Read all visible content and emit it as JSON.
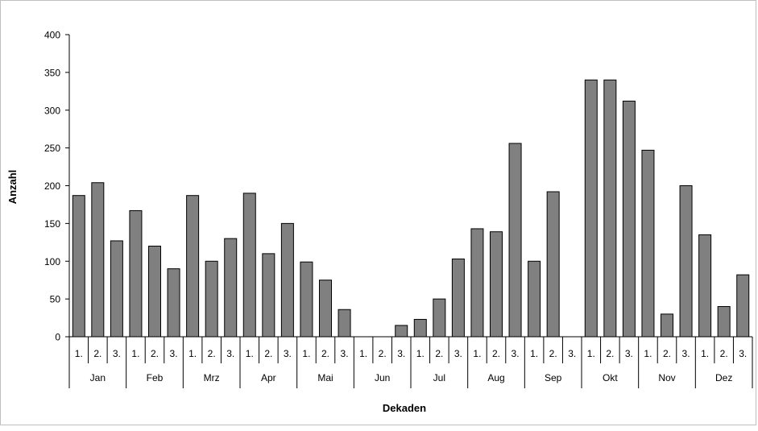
{
  "chart_data": {
    "type": "bar",
    "title": "",
    "xlabel": "Dekaden",
    "ylabel": "Anzahl",
    "ylim": [
      0,
      400
    ],
    "yticks": [
      0,
      50,
      100,
      150,
      200,
      250,
      300,
      350,
      400
    ],
    "grid": false,
    "legend": "none",
    "months": [
      "Jan",
      "Feb",
      "Mrz",
      "Apr",
      "Mai",
      "Jun",
      "Jul",
      "Aug",
      "Sep",
      "Okt",
      "Nov",
      "Dez"
    ],
    "decade_labels": [
      "1.",
      "2.",
      "3."
    ],
    "values": [
      187,
      204,
      127,
      167,
      120,
      90,
      187,
      100,
      130,
      190,
      110,
      150,
      99,
      75,
      36,
      0,
      0,
      15,
      23,
      50,
      103,
      143,
      139,
      256,
      100,
      192,
      0,
      340,
      340,
      312,
      247,
      30,
      200,
      135,
      40,
      82
    ],
    "colors": {
      "bar": "#808080",
      "bar_stroke": "#000000",
      "axis": "#000000",
      "frame": "#bfbfbf"
    }
  }
}
